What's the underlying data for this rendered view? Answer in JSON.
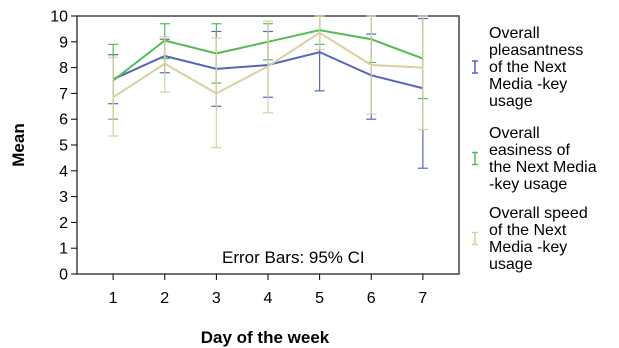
{
  "chart_data": {
    "type": "line",
    "xlabel": "Day of the week",
    "ylabel": "Mean",
    "x": [
      1,
      2,
      3,
      4,
      5,
      6,
      7
    ],
    "xlim": [
      0.3,
      7.7
    ],
    "ylim": [
      0,
      10
    ],
    "yticks": [
      0,
      1,
      2,
      3,
      4,
      5,
      6,
      7,
      8,
      9,
      10
    ],
    "grid": false,
    "legend_position": "right",
    "annotation": "Error Bars: 95% CI",
    "series": [
      {
        "name": "Overall pleasantness of the Next Media -key usage",
        "color": "#5566bb",
        "legend_lines": [
          "Overall",
          "pleasantness",
          "of the Next",
          "Media -key",
          "usage"
        ],
        "mean": [
          7.55,
          8.45,
          7.95,
          8.1,
          8.6,
          7.7,
          7.2
        ],
        "lower": [
          6.6,
          7.8,
          6.5,
          6.85,
          7.1,
          6.0,
          4.1
        ],
        "upper": [
          8.5,
          9.1,
          9.4,
          9.4,
          10.0,
          9.3,
          9.9
        ]
      },
      {
        "name": "Overall easiness of the Next Media -key usage",
        "color": "#55bb55",
        "legend_lines": [
          "Overall",
          "easiness of",
          "the Next Media",
          "-key usage"
        ],
        "mean": [
          7.5,
          9.05,
          8.55,
          9.0,
          9.45,
          9.1,
          8.35
        ],
        "lower": [
          6.0,
          8.35,
          7.4,
          8.3,
          8.9,
          8.2,
          6.8
        ],
        "upper": [
          8.9,
          9.7,
          9.7,
          9.7,
          10.0,
          10.0,
          10.0
        ]
      },
      {
        "name": "Overall speed of the Next Media -key usage",
        "color": "#d8d0a0",
        "legend_lines": [
          "Overall speed",
          "of the Next",
          "Media -key",
          "usage"
        ],
        "mean": [
          6.85,
          8.15,
          7.0,
          8.05,
          9.35,
          8.1,
          8.0
        ],
        "lower": [
          5.35,
          7.05,
          4.9,
          6.25,
          8.7,
          6.2,
          5.6
        ],
        "upper": [
          8.4,
          9.2,
          9.15,
          9.8,
          10.0,
          10.0,
          10.0
        ]
      }
    ]
  }
}
